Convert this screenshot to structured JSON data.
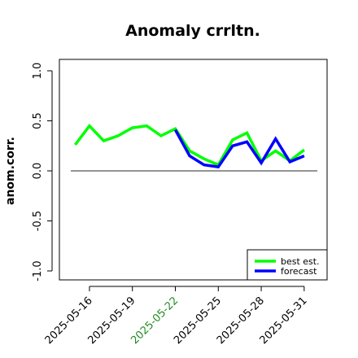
{
  "chart_data": {
    "type": "line",
    "title": "Anomaly crrltn.",
    "ylabel": "anom.corr.",
    "xlabel": "",
    "ylim": [
      -1.05,
      1.05
    ],
    "yticks": [
      -1.0,
      -0.5,
      0.0,
      0.5,
      1.0
    ],
    "ytick_labels": [
      "-1.0",
      "-0.5",
      "0.0",
      "0.5",
      "1.0"
    ],
    "xticks": [
      {
        "label": "2025-05-16",
        "day": 16,
        "color": "#000000"
      },
      {
        "label": "2025-05-19",
        "day": 19,
        "color": "#000000"
      },
      {
        "label": "2025-05-22",
        "day": 22,
        "color": "#228b22"
      },
      {
        "label": "2025-05-25",
        "day": 25,
        "color": "#000000"
      },
      {
        "label": "2025-05-28",
        "day": 28,
        "color": "#000000"
      },
      {
        "label": "2025-05-31",
        "day": 31,
        "color": "#000000"
      }
    ],
    "xlim_days": [
      13.9,
      32.6
    ],
    "reference_line": 0.0,
    "grid": false,
    "legend_position": "bottom-right",
    "x_days": [
      15,
      16,
      17,
      18,
      19,
      20,
      21,
      22,
      23,
      24,
      25,
      26,
      27,
      28,
      29,
      30,
      31
    ],
    "series": [
      {
        "name": "best est.",
        "color": "#00ff00",
        "values": [
          0.26,
          0.45,
          0.3,
          0.35,
          0.43,
          0.45,
          0.35,
          0.42,
          0.2,
          0.12,
          0.06,
          0.31,
          0.38,
          0.1,
          0.2,
          0.1,
          0.21
        ]
      },
      {
        "name": "forecast",
        "color": "#0000ff",
        "values": [
          null,
          null,
          null,
          null,
          null,
          null,
          null,
          0.41,
          0.15,
          0.06,
          0.04,
          0.25,
          0.29,
          0.08,
          0.32,
          0.09,
          0.15
        ]
      }
    ]
  }
}
